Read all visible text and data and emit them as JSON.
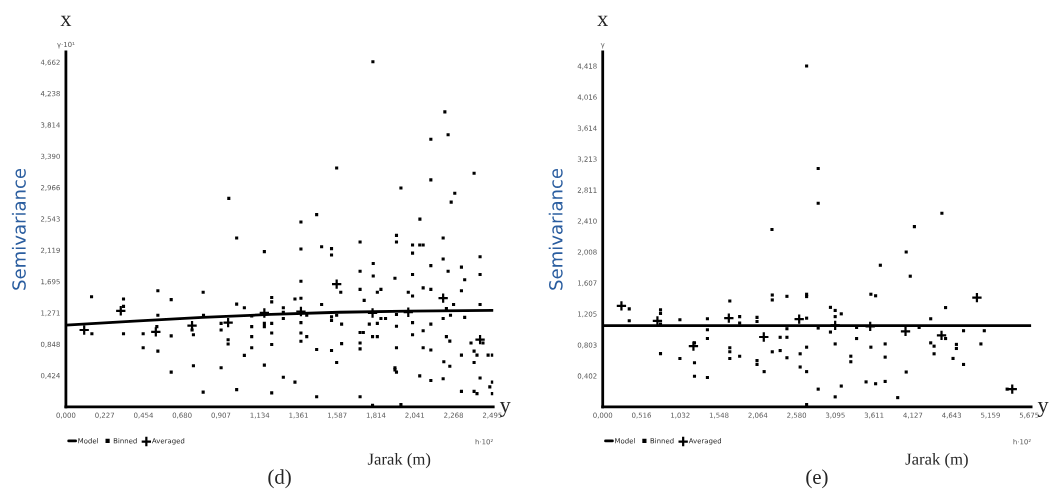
{
  "chart_data": [
    {
      "type": "scatter",
      "title": "(d)",
      "xlabel": "Jarak (m)",
      "ylabel": "Semivariance",
      "xlim": [
        0,
        2.5
      ],
      "ylim": [
        0,
        4.8
      ],
      "xticks": [
        {
          "value": 0,
          "label": "0,000"
        },
        {
          "value": 0.227,
          "label": "0,227"
        },
        {
          "value": 0.454,
          "label": "0,454"
        },
        {
          "value": 0.68,
          "label": "0,680"
        },
        {
          "value": 0.907,
          "label": "0,907"
        },
        {
          "value": 1.134,
          "label": "1,134"
        },
        {
          "value": 1.361,
          "label": "1,361"
        },
        {
          "value": 1.587,
          "label": "1,587"
        },
        {
          "value": 1.814,
          "label": "1,814"
        },
        {
          "value": 2.041,
          "label": "2,041"
        },
        {
          "value": 2.268,
          "label": "2,268"
        },
        {
          "value": 2.495,
          "label": "2,495"
        }
      ],
      "yticks": [
        {
          "value": 0.424,
          "label": "0,424"
        },
        {
          "value": 0.848,
          "label": "0,848"
        },
        {
          "value": 1.271,
          "label": "1,271"
        },
        {
          "value": 1.695,
          "label": "1,695"
        },
        {
          "value": 2.119,
          "label": "2,119"
        },
        {
          "value": 2.543,
          "label": "2,543"
        },
        {
          "value": 2.966,
          "label": "2,966"
        },
        {
          "value": 3.39,
          "label": "3,390"
        },
        {
          "value": 3.814,
          "label": "3,814"
        },
        {
          "value": 4.238,
          "label": "4,238"
        },
        {
          "value": 4.662,
          "label": "4,662"
        }
      ],
      "grid": false,
      "legend": "bottom left",
      "annotations": [
        "x",
        "y",
        "γ·10¹",
        "h·10²"
      ],
      "series": [
        {
          "name": "Model",
          "type": "line",
          "color": "#000000",
          "marker": "none",
          "x": [
            0,
            0.4,
            0.8,
            1.2,
            1.6,
            2.0,
            2.5
          ],
          "values": [
            1.107,
            1.16,
            1.21,
            1.25,
            1.28,
            1.295,
            1.306
          ]
        },
        {
          "name": "Binned",
          "type": "scatter",
          "color": "#000000",
          "marker": "square",
          "x": [
            1.796,
            2.217,
            2.135,
            2.236,
            1.584,
            2.388,
            2.135,
            1.96,
            2.275,
            2.254,
            0.953,
            1.467,
            1.375,
            2.071,
            0.999,
            1.161,
            1.375,
            1.496,
            1.554,
            1.554,
            1.721,
            1.934,
            1.934,
            2.028,
            2.028,
            2.07,
            2.09,
            2.207,
            2.207,
            2.135,
            2.314,
            1.798,
            2.236,
            2.423,
            2.423,
            1.721,
            1.925,
            2.028,
            2.333,
            1.375,
            1.798,
            1.721,
            1.843,
            1.608,
            1.822,
            2.09,
            2.003,
            2.314,
            2.135,
            2.028,
            0.538,
            0.803,
            0.15,
            0.616,
            1.204,
            1.204,
            1.34,
            1.375,
            1.745,
            0.999,
            1.044,
            1.272,
            1.272,
            1.496,
            0.337,
            0.337,
            0.805,
            0.538,
            2.226,
            2.268,
            2.25,
            2.207,
            2.333,
            2.423,
            1.087,
            1.272,
            1.409,
            1.554,
            1.554,
            1.584,
            1.613,
            1.843,
            1.87,
            1.934,
            1.934,
            2.028,
            2.135,
            1.822,
            1.775,
            1.161,
            1.161,
            1.204,
            1.204,
            1.375,
            1.375,
            0.908,
            0.908,
            0.738,
            0.746,
            0.532,
            0.452,
            0.337,
            0.152,
            2.09,
            2.028,
            2.226,
            2.246,
            1.74,
            1.794,
            1.822,
            1.721,
            1.721,
            1.721,
            1.613,
            1.409,
            1.375,
            1.204,
            1.087,
            1.087,
            1.087,
            0.949,
            0.949,
            0.616,
            0.452,
            0.538,
            1.044,
            1.467,
            1.554,
            1.934,
            2.09,
            2.135,
            2.37,
            2.388,
            2.405,
            2.44,
            2.47,
            2.495,
            2.314,
            2.211,
            2.246,
            1.584,
            1.161,
            0.746,
            0.908,
            1.925,
            1.925,
            1.934,
            0.616,
            1.272,
            1.34,
            2.07,
            2.135,
            2.207,
            2.388,
            2.423,
            2.495,
            2.48,
            0.803,
            0.999,
            1.204,
            1.467,
            1.721,
            2.314,
            2.388,
            2.405,
            2.495,
            1.794,
            1.96
          ],
          "values": [
            4.667,
            3.99,
            3.62,
            3.68,
            3.23,
            3.16,
            3.07,
            2.96,
            2.89,
            2.77,
            2.82,
            2.6,
            2.5,
            2.54,
            2.285,
            2.1,
            2.135,
            2.166,
            2.14,
            2.055,
            2.23,
            2.32,
            2.23,
            2.19,
            2.08,
            2.19,
            2.19,
            2.285,
            2.0,
            1.91,
            1.89,
            1.94,
            1.835,
            2.03,
            1.79,
            1.835,
            1.74,
            1.79,
            1.72,
            1.7,
            1.77,
            1.59,
            1.59,
            1.55,
            1.55,
            1.61,
            1.55,
            1.57,
            1.59,
            1.5,
            1.57,
            1.55,
            1.49,
            1.45,
            1.48,
            1.42,
            1.46,
            1.47,
            1.44,
            1.39,
            1.34,
            1.34,
            1.28,
            1.385,
            1.46,
            1.36,
            1.24,
            1.24,
            1.33,
            1.385,
            1.24,
            1.195,
            1.21,
            1.385,
            1.23,
            1.195,
            1.24,
            1.22,
            1.17,
            1.24,
            1.12,
            1.195,
            1.195,
            1.25,
            1.09,
            1.14,
            1.12,
            1.13,
            1.12,
            1.13,
            1.085,
            1.13,
            1.0,
            1.14,
            1.0,
            1.13,
            1.04,
            1.04,
            0.975,
            1.085,
            0.99,
            0.99,
            0.99,
            1.03,
            0.975,
            0.95,
            0.89,
            1.006,
            0.95,
            0.95,
            1.006,
            0.865,
            0.785,
            0.856,
            0.95,
            0.887,
            0.843,
            1.085,
            0.95,
            0.8,
            0.909,
            0.851,
            0.96,
            0.8,
            0.754,
            0.697,
            0.776,
            0.763,
            0.8,
            0.8,
            0.77,
            0.865,
            0.754,
            0.7,
            0.865,
            0.7,
            0.7,
            0.7,
            0.61,
            0.55,
            0.6,
            0.565,
            0.556,
            0.53,
            0.53,
            0.5,
            0.47,
            0.47,
            0.4,
            0.335,
            0.42,
            0.357,
            0.38,
            0.6,
            0.39,
            0.335,
            0.27,
            0.2,
            0.234,
            0.19,
            0.137,
            0.137,
            0.21,
            0.21,
            0.18,
            0.18,
            0.02,
            0.03
          ]
        },
        {
          "name": "Averaged",
          "type": "scatter",
          "color": "#000000",
          "marker": "cross",
          "x": [
            0.107,
            0.321,
            0.526,
            0.738,
            0.949,
            1.161,
            1.375,
            1.584,
            1.794,
            2.003,
            2.207,
            2.423
          ],
          "values": [
            1.04,
            1.3,
            1.015,
            1.1,
            1.14,
            1.27,
            1.29,
            1.66,
            1.27,
            1.28,
            1.47,
            0.909
          ]
        }
      ]
    },
    {
      "type": "scatter",
      "title": "(e)",
      "xlabel": "Jarak (m)",
      "ylabel": "Semivariance",
      "xlim": [
        0,
        5.7
      ],
      "ylim": [
        0,
        4.6
      ],
      "xticks": [
        {
          "value": 0,
          "label": "0,000"
        },
        {
          "value": 0.516,
          "label": "0,516"
        },
        {
          "value": 1.032,
          "label": "1,032"
        },
        {
          "value": 1.548,
          "label": "1,548"
        },
        {
          "value": 2.064,
          "label": "2,064"
        },
        {
          "value": 2.58,
          "label": "2,580"
        },
        {
          "value": 3.095,
          "label": "3,095"
        },
        {
          "value": 3.611,
          "label": "3,611"
        },
        {
          "value": 4.127,
          "label": "4,127"
        },
        {
          "value": 4.643,
          "label": "4,643"
        },
        {
          "value": 5.159,
          "label": "5,159"
        },
        {
          "value": 5.675,
          "label": "5,675"
        }
      ],
      "yticks": [
        {
          "value": 0.402,
          "label": "0,402"
        },
        {
          "value": 0.803,
          "label": "0,803"
        },
        {
          "value": 1.205,
          "label": "1,205"
        },
        {
          "value": 1.607,
          "label": "1,607"
        },
        {
          "value": 2.008,
          "label": "2,008"
        },
        {
          "value": 2.41,
          "label": "2,410"
        },
        {
          "value": 2.811,
          "label": "2,811"
        },
        {
          "value": 3.213,
          "label": "3,213"
        },
        {
          "value": 3.614,
          "label": "3,614"
        },
        {
          "value": 4.016,
          "label": "4,016"
        },
        {
          "value": 4.418,
          "label": "4,418"
        }
      ],
      "grid": false,
      "legend": "bottom left",
      "annotations": [
        "x",
        "y",
        "γ",
        "h·10²"
      ],
      "series": [
        {
          "name": "Model",
          "type": "line",
          "color": "#000000",
          "marker": "none",
          "x": [
            0,
            5.7
          ],
          "values": [
            1.052,
            1.052
          ]
        },
        {
          "name": "Binned",
          "type": "scatter",
          "color": "#000000",
          "marker": "square",
          "x": [
            2.713,
            2.867,
            2.867,
            4.513,
            4.147,
            2.252,
            4.038,
            3.694,
            4.092,
            0.353,
            0.353,
            0.769,
            0.769,
            0.769,
            0.769,
            1.027,
            1.027,
            1.221,
            1.221,
            1.221,
            1.393,
            1.393,
            1.393,
            1.393,
            1.691,
            1.691,
            1.691,
            1.691,
            1.822,
            1.822,
            1.822,
            2.053,
            2.053,
            2.053,
            2.053,
            2.148,
            2.256,
            2.256,
            2.256,
            2.361,
            2.361,
            2.451,
            2.451,
            2.451,
            2.451,
            2.627,
            2.627,
            2.713,
            2.713,
            2.713,
            2.713,
            2.713,
            2.713,
            2.867,
            2.867,
            3.03,
            3.03,
            3.093,
            3.093,
            3.174,
            3.093,
            3.093,
            3.174,
            3.378,
            3.378,
            3.301,
            3.301,
            3.504,
            3.631,
            3.758,
            3.568,
            3.631,
            3.568,
            3.758,
            3.758,
            3.925,
            4.038,
            4.21,
            4.364,
            4.364,
            4.409,
            4.409,
            4.562,
            4.562,
            4.661,
            4.706,
            4.706,
            4.801,
            4.801,
            5.032,
            5.077,
            5.381
          ],
          "values": [
            4.418,
            3.09,
            2.64,
            2.51,
            2.336,
            2.3,
            2.008,
            1.836,
            1.694,
            1.271,
            1.116,
            1.257,
            1.21,
            1.073,
            0.69,
            1.13,
            0.628,
            0.83,
            0.573,
            0.397,
            1.142,
            1.0,
            0.886,
            0.38,
            1.373,
            0.766,
            0.715,
            0.628,
            1.17,
            1.086,
            0.657,
            1.16,
            1.107,
            0.6,
            0.55,
            0.457,
            1.45,
            1.386,
            0.714,
            0.902,
            0.73,
            1.433,
            1.013,
            0.902,
            0.637,
            0.688,
            0.517,
            1.46,
            1.43,
            1.15,
            0.774,
            0.457,
            0.03,
            1.022,
            0.23,
            1.29,
            0.97,
            1.25,
            1.17,
            1.206,
            0.816,
            0.13,
            0.27,
            1.03,
            0.886,
            0.657,
            0.585,
            0.324,
            0.3,
            0.33,
            1.46,
            1.44,
            0.774,
            0.816,
            0.645,
            0.12,
            0.452,
            1.03,
            1.142,
            0.83,
            0.787,
            0.688,
            1.287,
            0.886,
            0.628,
            0.81,
            0.757,
            0.987,
            0.55,
            0.816,
            0.987,
            0.23
          ]
        },
        {
          "name": "Averaged",
          "type": "scatter",
          "color": "#000000",
          "marker": "cross",
          "x": [
            0.249,
            0.728,
            1.207,
            1.678,
            2.143,
            2.614,
            3.093,
            3.559,
            4.029,
            4.508,
            4.979,
            5.449
          ],
          "values": [
            1.31,
            1.116,
            0.787,
            1.15,
            0.906,
            1.138,
            1.056,
            1.044,
            0.979,
            0.928,
            1.416,
            0.23
          ]
        }
      ]
    }
  ]
}
